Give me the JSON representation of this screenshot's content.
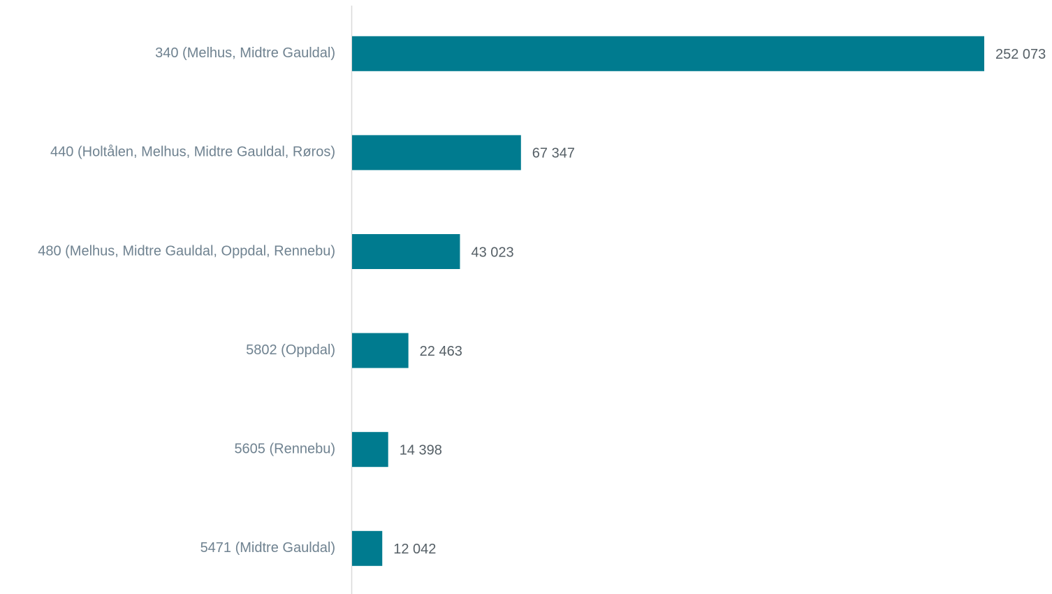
{
  "chart_data": {
    "type": "barh",
    "categories": [
      "340 (Melhus, Midtre Gauldal)",
      "440 (Holtålen, Melhus, Midtre Gauldal, Røros)",
      "480 (Melhus, Midtre Gauldal, Oppdal, Rennebu)",
      "5802 (Oppdal)",
      "5605 (Rennebu)",
      "5471 (Midtre Gauldal)"
    ],
    "values": [
      252073,
      67347,
      43023,
      22463,
      14398,
      12042
    ],
    "value_labels": [
      "252 073",
      "67 347",
      "43 023",
      "22 463",
      "14 398",
      "12 042"
    ],
    "color": "#007b8f"
  }
}
